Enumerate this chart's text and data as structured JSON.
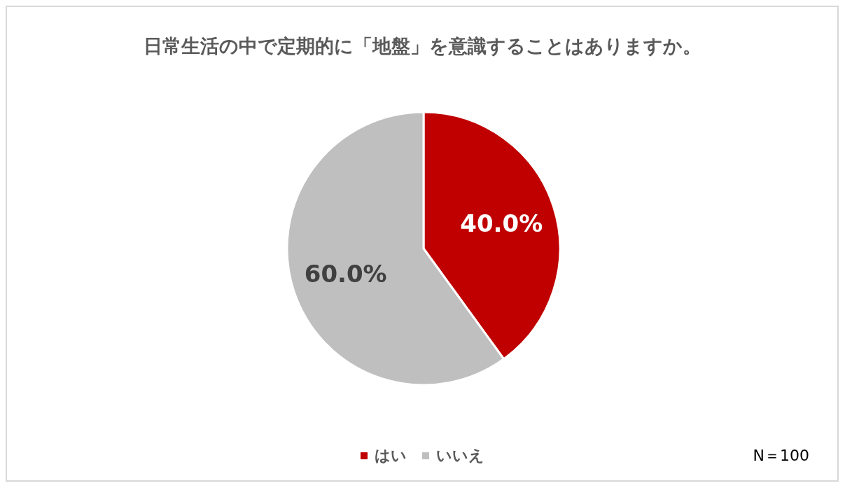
{
  "chart_data": {
    "type": "pie",
    "title": "日常生活の中で定期的に「地盤」を意識することはありますか。",
    "categories": [
      "はい",
      "いいえ"
    ],
    "values": [
      40,
      60
    ],
    "colors": [
      "#c00000",
      "#bfbfbf"
    ],
    "value_labels": [
      "40.0%",
      "60.0%"
    ],
    "legend": "bottom",
    "annotations": [
      "N＝100"
    ]
  }
}
